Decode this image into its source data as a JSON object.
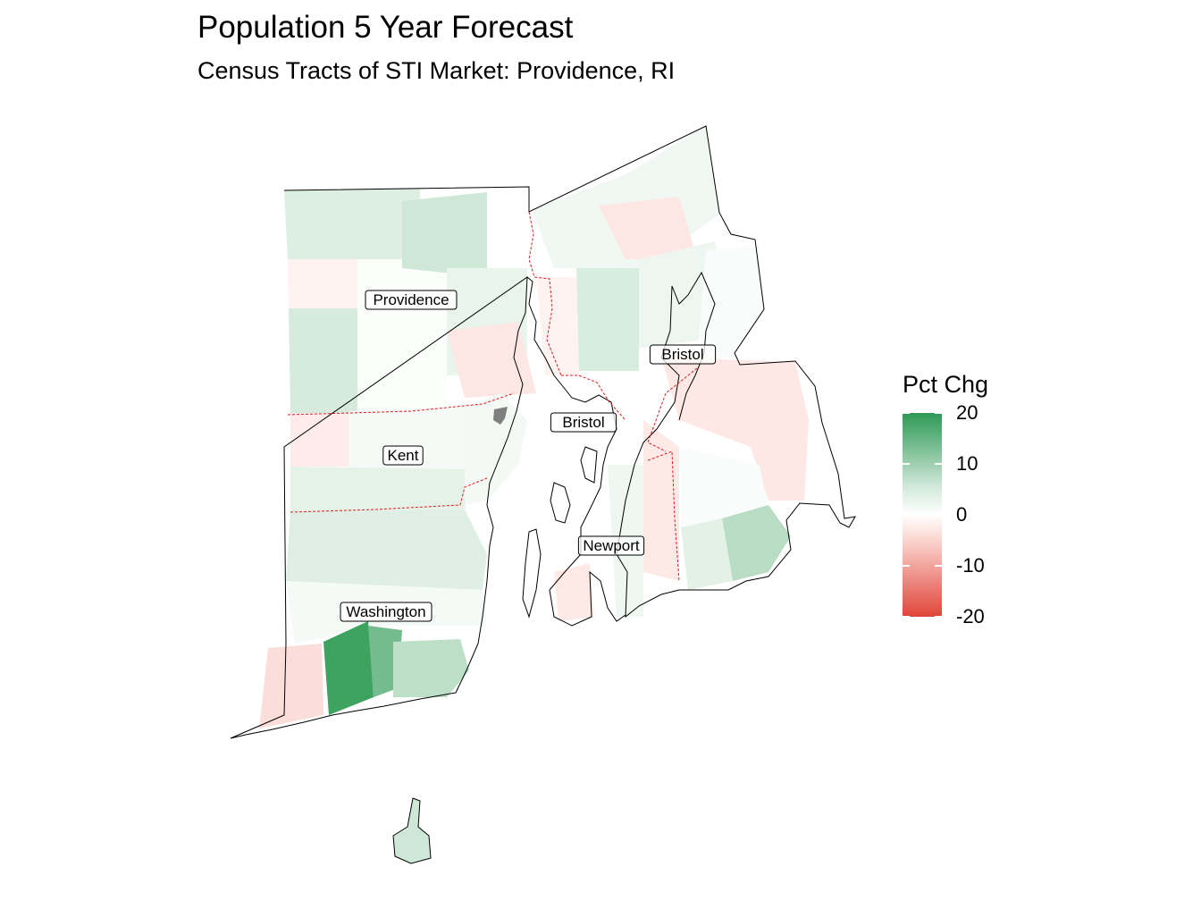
{
  "title": "Population 5 Year Forecast",
  "subtitle": "Census Tracts of STI Market: Providence, RI",
  "counties": [
    {
      "name": "Providence",
      "pct_chg": 3
    },
    {
      "name": "Kent",
      "pct_chg": 4
    },
    {
      "name": "Bristol",
      "pct_chg": 1
    },
    {
      "name": "Bristol",
      "pct_chg": -2
    },
    {
      "name": "Newport",
      "pct_chg": 1
    },
    {
      "name": "Washington",
      "pct_chg": 8
    }
  ],
  "legend": {
    "title": "Pct Chg",
    "breaks": [
      "20",
      "10",
      "0",
      "-10",
      "-20"
    ],
    "range": [
      -20,
      20
    ],
    "colors": {
      "high": "#2e9955",
      "mid": "#ffffff",
      "low": "#e0453a"
    }
  },
  "colors": {
    "na_tract": "#7f7f7f",
    "county_border": "#e31a1c",
    "state_outline": "#000000"
  }
}
